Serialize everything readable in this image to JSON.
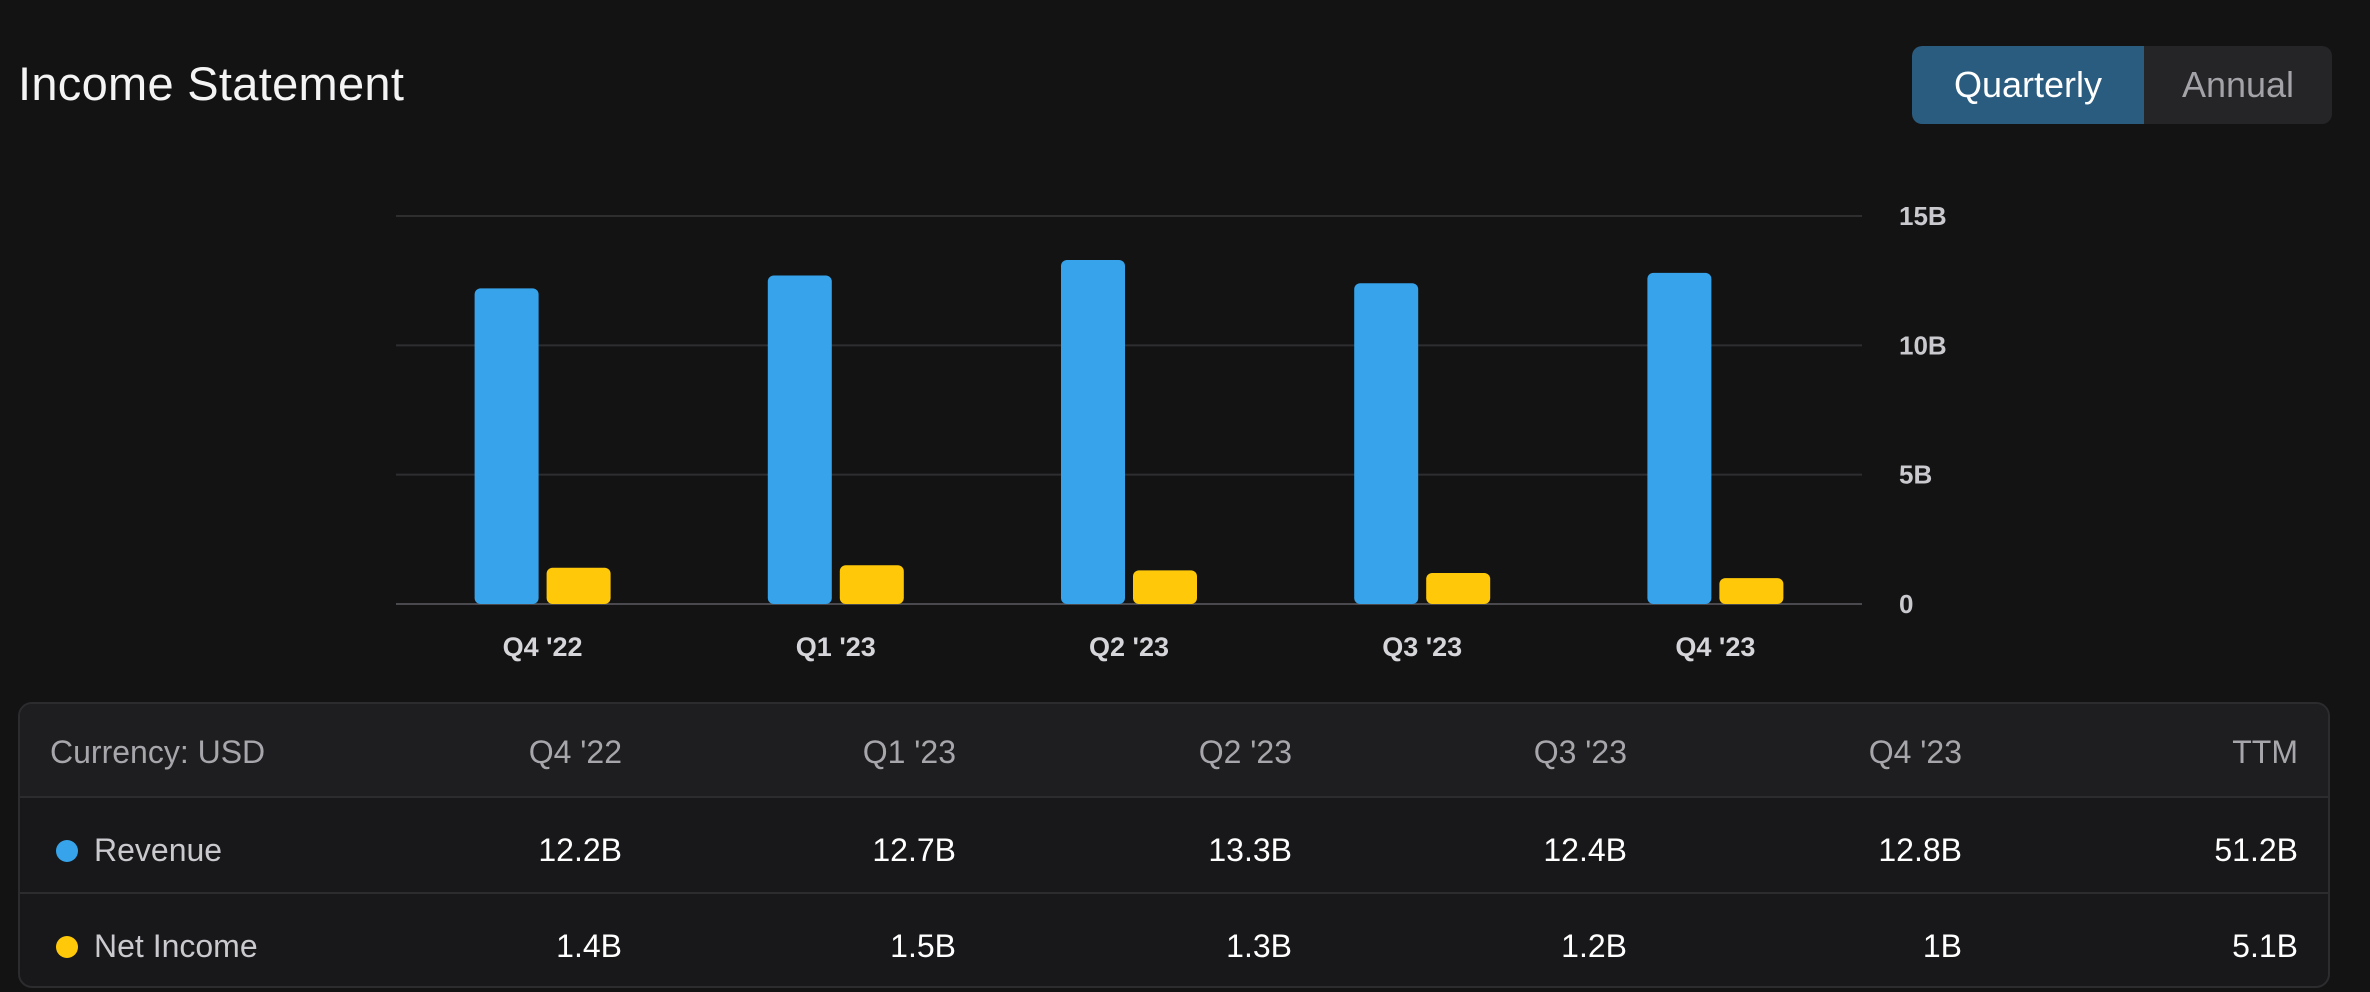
{
  "header": {
    "title": "Income Statement",
    "toggle": {
      "quarterly": "Quarterly",
      "annual": "Annual",
      "selected": "Quarterly"
    }
  },
  "colors": {
    "revenue": "#36a3eb",
    "net_income": "#ffc90a",
    "active_toggle": "#2a5c80"
  },
  "chart_data": {
    "type": "bar",
    "categories": [
      "Q4 '22",
      "Q1 '23",
      "Q2 '23",
      "Q3 '23",
      "Q4 '23"
    ],
    "series": [
      {
        "name": "Revenue",
        "values": [
          12.2,
          12.7,
          13.3,
          12.4,
          12.8
        ]
      },
      {
        "name": "Net Income",
        "values": [
          1.4,
          1.5,
          1.3,
          1.2,
          1.0
        ]
      }
    ],
    "y_ticks": [
      "15B",
      "10B",
      "5B",
      "0"
    ],
    "ylim": [
      0,
      15
    ],
    "y_axis_position": "right",
    "grid": true,
    "title": "",
    "xlabel": "",
    "ylabel": ""
  },
  "table": {
    "currency_label": "Currency: USD",
    "columns": [
      "Q4 '22",
      "Q1 '23",
      "Q2 '23",
      "Q3 '23",
      "Q4 '23",
      "TTM"
    ],
    "rows": [
      {
        "label": "Revenue",
        "values": [
          "12.2B",
          "12.7B",
          "13.3B",
          "12.4B",
          "12.8B",
          "51.2B"
        ]
      },
      {
        "label": "Net Income",
        "values": [
          "1.4B",
          "1.5B",
          "1.3B",
          "1.2B",
          "1B",
          "5.1B"
        ]
      }
    ]
  }
}
